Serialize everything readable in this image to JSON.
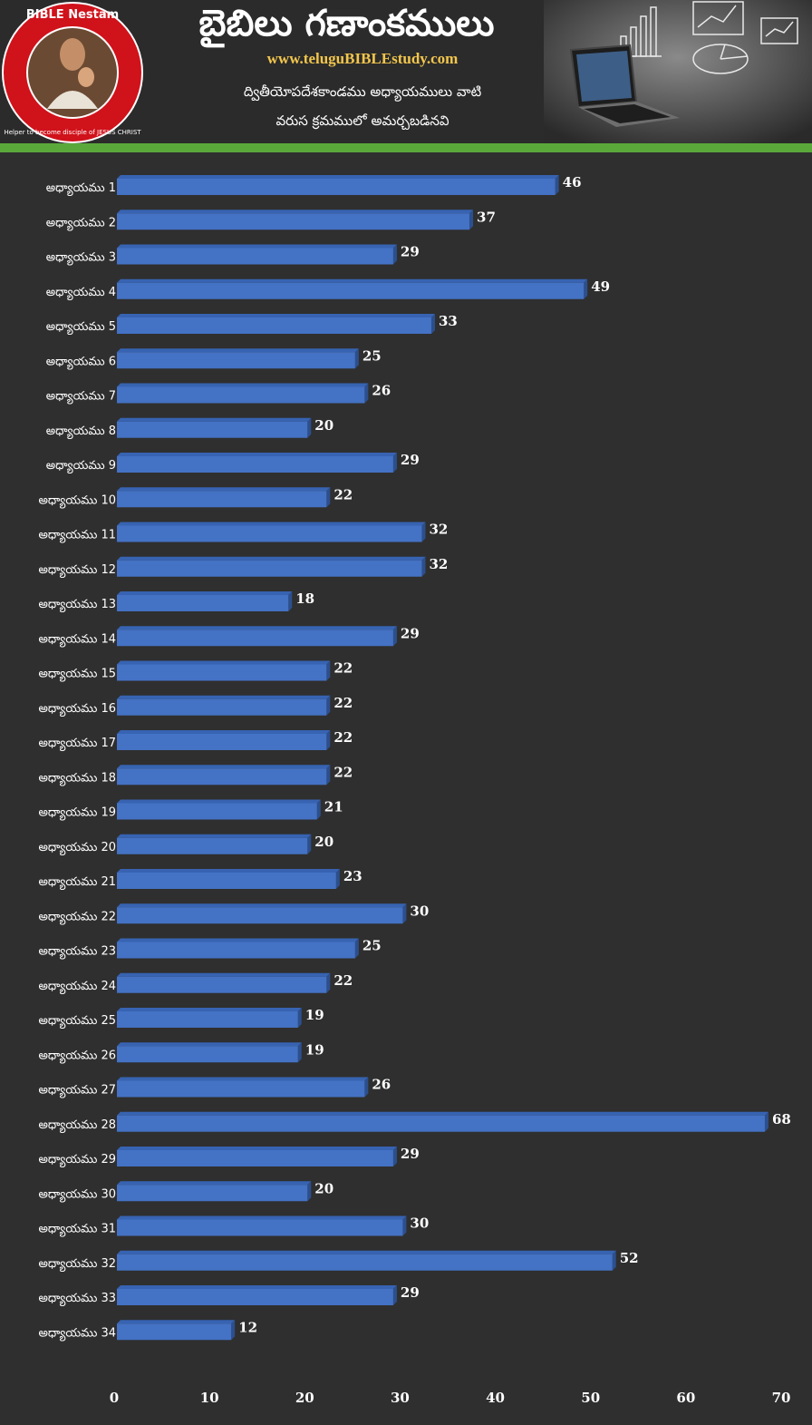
{
  "header": {
    "logo_text": "BIBLE Nestam",
    "logo_tagline": "Helper to become disciple of JESUS CHRIST",
    "title": "బైబిలు గణాంకములు",
    "url": "www.teluguBIBLEstudy.com",
    "subtitle_line1": "ద్వితీయోపదేశకాండము అధ్యాయములు వాటి",
    "subtitle_line2": "వరుస క్రమములో అమర్చబడినవి"
  },
  "colors": {
    "background": "#2f2f2f",
    "accent_green": "#5aa83a",
    "bar_fill": "#4472c4",
    "url_gold": "#f2c64d",
    "text": "#ffffff"
  },
  "chart_data": {
    "type": "bar",
    "orientation": "horizontal",
    "categories": [
      "అధ్యాయము 1",
      "అధ్యాయము 2",
      "అధ్యాయము 3",
      "అధ్యాయము 4",
      "అధ్యాయము 5",
      "అధ్యాయము 6",
      "అధ్యాయము 7",
      "అధ్యాయము 8",
      "అధ్యాయము 9",
      "అధ్యాయము 10",
      "అధ్యాయము 11",
      "అధ్యాయము 12",
      "అధ్యాయము 13",
      "అధ్యాయము 14",
      "అధ్యాయము 15",
      "అధ్యాయము 16",
      "అధ్యాయము 17",
      "అధ్యాయము 18",
      "అధ్యాయము 19",
      "అధ్యాయము 20",
      "అధ్యాయము 21",
      "అధ్యాయము 22",
      "అధ్యాయము 23",
      "అధ్యాయము 24",
      "అధ్యాయము 25",
      "అధ్యాయము 26",
      "అధ్యాయము 27",
      "అధ్యాయము 28",
      "అధ్యాయము 29",
      "అధ్యాయము 30",
      "అధ్యాయము 31",
      "అధ్యాయము 32",
      "అధ్యాయము 33",
      "అధ్యాయము 34"
    ],
    "values": [
      46,
      37,
      29,
      49,
      33,
      25,
      26,
      20,
      29,
      22,
      32,
      32,
      18,
      29,
      22,
      22,
      22,
      22,
      21,
      20,
      23,
      30,
      25,
      22,
      19,
      19,
      26,
      68,
      29,
      20,
      30,
      52,
      29,
      12
    ],
    "xlim": [
      0,
      70
    ],
    "xticks": [
      0,
      10,
      20,
      30,
      40,
      50,
      60,
      70
    ],
    "data_labels": true,
    "grid": false,
    "legend": "none"
  }
}
